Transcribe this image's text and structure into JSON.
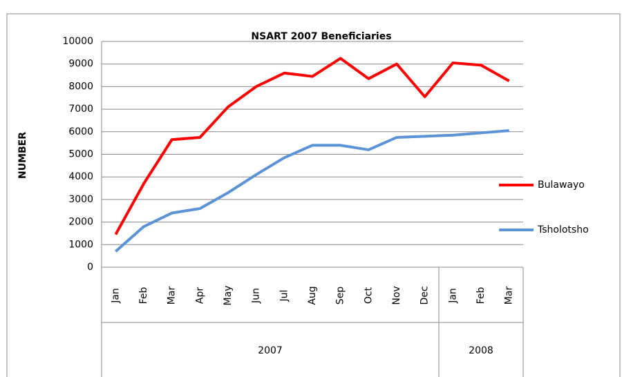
{
  "chart_data": {
    "type": "line",
    "title": "NSART 2007 Beneficiaries",
    "y_label": "NUMBER",
    "categories": [
      "Jan",
      "Feb",
      "Mar",
      "Apr",
      "May",
      "Jun",
      "Jul",
      "Aug",
      "Sep",
      "Oct",
      "Nov",
      "Dec",
      "Jan",
      "Feb",
      "Mar"
    ],
    "groups": [
      {
        "label": "2007",
        "count": 12
      },
      {
        "label": "2008",
        "count": 3
      }
    ],
    "series": [
      {
        "name": "Bulawayo",
        "color": "#ff0000",
        "values": [
          1450,
          3700,
          5650,
          5750,
          7100,
          8000,
          8600,
          8450,
          9250,
          8350,
          9000,
          7550,
          9050,
          8950,
          8250
        ]
      },
      {
        "name": "Tsholotsho",
        "color": "#5b93d6",
        "values": [
          700,
          1800,
          2400,
          2600,
          3300,
          4100,
          4850,
          5400,
          5400,
          5200,
          5750,
          5800,
          5850,
          5950,
          6050
        ]
      }
    ],
    "ylim": [
      0,
      10000
    ],
    "yticks": [
      0,
      1000,
      2000,
      3000,
      4000,
      5000,
      6000,
      7000,
      8000,
      9000,
      10000
    ],
    "grid": true,
    "legend": "right"
  }
}
